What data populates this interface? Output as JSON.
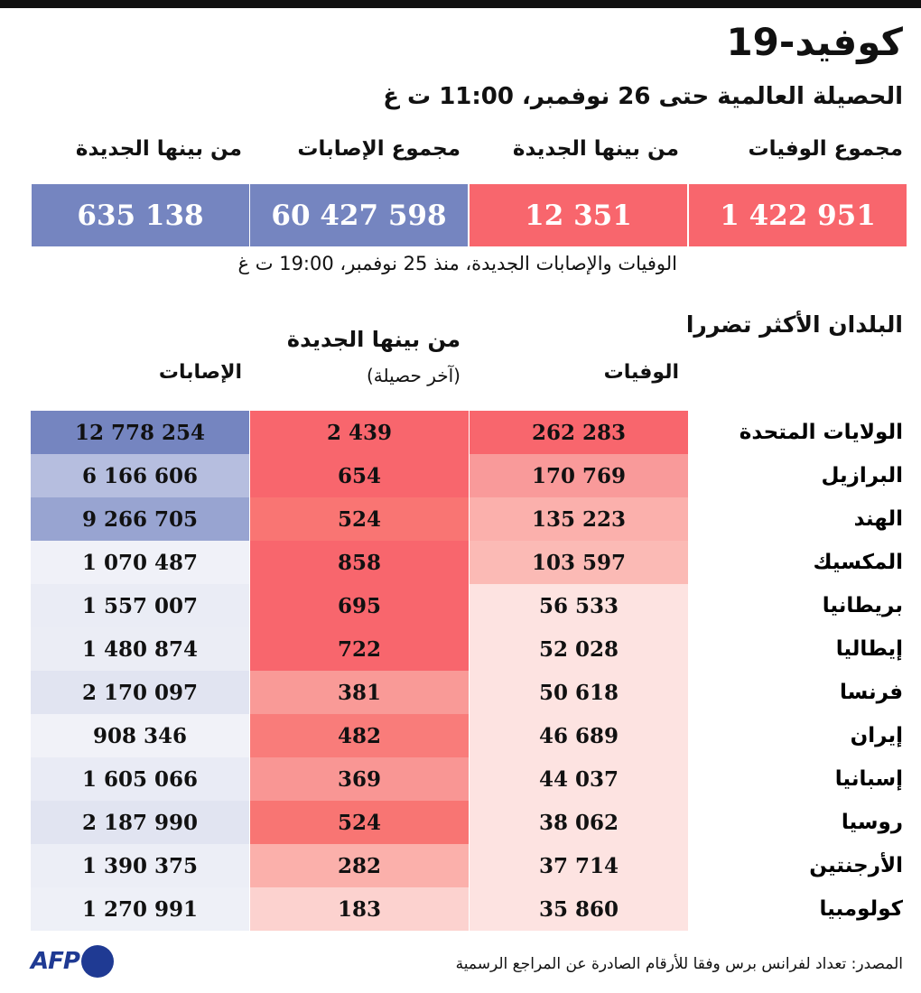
{
  "title": "كوفيد-19",
  "subtitle": "الحصيلة العالمية حتى 26 نوفمبر، 11:00 ت غ",
  "kpis": [
    {
      "label": "مجموع الوفيات",
      "value": "1 422 951",
      "color": "#f8666d"
    },
    {
      "label": "من بينها الجديدة",
      "value": "12 351",
      "color": "#f8666d"
    },
    {
      "label": "مجموع الإصابات",
      "value": "60 427 598",
      "color": "#7585c0"
    },
    {
      "label": "من بينها الجديدة",
      "value": "635 138",
      "color": "#7585c0"
    }
  ],
  "note": "الوفيات والإصابات الجديدة، منذ 25 نوفمبر، 19:00 ت غ",
  "section_title": "البلدان الأكثر تضررا",
  "chart_data": {
    "type": "table",
    "columns": [
      {
        "label": "الوفيات",
        "sublabel": ""
      },
      {
        "label": "من بينها الجديدة",
        "sublabel": "(آخر حصيلة)"
      },
      {
        "label": "الإصابات",
        "sublabel": ""
      }
    ],
    "rows": [
      {
        "country": "الولايات المتحدة",
        "deaths": "262 283",
        "new": "2 439",
        "cases": "12 778 254",
        "colors": [
          "#f8666d",
          "#f8666d",
          "#7585c0"
        ]
      },
      {
        "country": "البرازيل",
        "deaths": "170 769",
        "new": "654",
        "cases": "6 166 606",
        "colors": [
          "#f99a9a",
          "#f8666d",
          "#b6bedf"
        ]
      },
      {
        "country": "الهند",
        "deaths": "135 223",
        "new": "524",
        "cases": "9 266 705",
        "colors": [
          "#fbb0ac",
          "#f97573",
          "#98a4d1"
        ]
      },
      {
        "country": "المكسيك",
        "deaths": "103 597",
        "new": "858",
        "cases": "1 070 487",
        "colors": [
          "#fbbab5",
          "#f8666d",
          "#f0f1f8"
        ]
      },
      {
        "country": "بريطانيا",
        "deaths": "56 533",
        "new": "695",
        "cases": "1 557 007",
        "colors": [
          "#fde3e1",
          "#f8666d",
          "#eaecf5"
        ]
      },
      {
        "country": "إيطاليا",
        "deaths": "52 028",
        "new": "722",
        "cases": "1 480 874",
        "colors": [
          "#fde3e1",
          "#f8666d",
          "#ebedf5"
        ]
      },
      {
        "country": "فرنسا",
        "deaths": "50 618",
        "new": "381",
        "cases": "2 170 097",
        "colors": [
          "#fde3e1",
          "#f99a97",
          "#e1e4f1"
        ]
      },
      {
        "country": "إيران",
        "deaths": "46 689",
        "new": "482",
        "cases": "908 346",
        "colors": [
          "#fde3e1",
          "#f97c7a",
          "#f1f2f8"
        ]
      },
      {
        "country": "إسبانيا",
        "deaths": "44 037",
        "new": "369",
        "cases": "1 605 066",
        "colors": [
          "#fde3e1",
          "#f99694",
          "#e9ebf5"
        ]
      },
      {
        "country": "روسيا",
        "deaths": "38 062",
        "new": "524",
        "cases": "2 187 990",
        "colors": [
          "#fde3e1",
          "#f87573",
          "#e1e4f1"
        ]
      },
      {
        "country": "الأرجنتين",
        "deaths": "37 714",
        "new": "282",
        "cases": "1 390 375",
        "colors": [
          "#fde3e1",
          "#fbb0ab",
          "#eceef6"
        ]
      },
      {
        "country": "كولومبيا",
        "deaths": "35 860",
        "new": "183",
        "cases": "1 270 991",
        "colors": [
          "#fde3e1",
          "#fcd2cf",
          "#eef0f7"
        ]
      }
    ]
  },
  "source": "المصدر: تعداد لفرانس برس وفقا للأرقام الصادرة عن المراجع الرسمية",
  "logo": "AFP"
}
